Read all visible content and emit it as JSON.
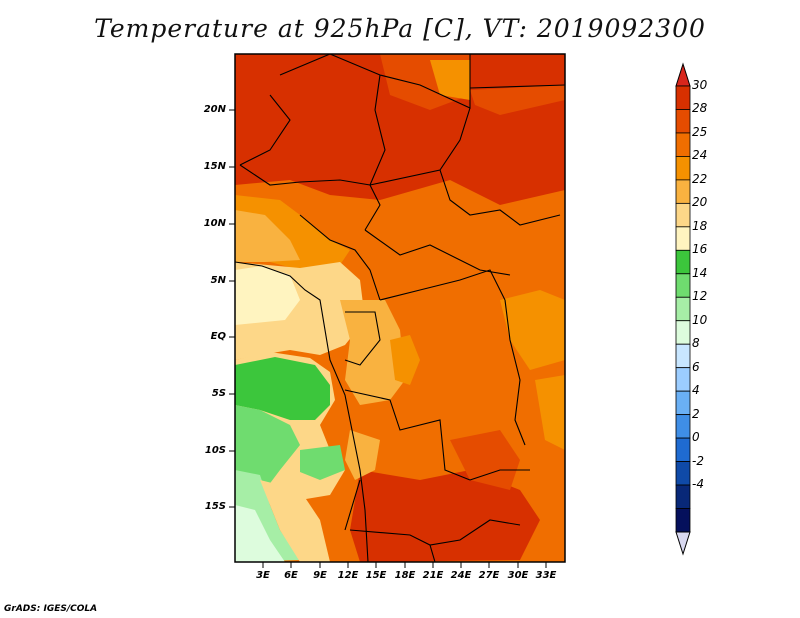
{
  "title": "Temperature at 925hPa [C], VT: 2019092300",
  "credit": "GrADS: IGES/COLA",
  "lat_labels": [
    "20N",
    "15N",
    "10N",
    "5N",
    "EQ",
    "5S",
    "10S",
    "15S"
  ],
  "lon_labels": [
    "3E",
    "6E",
    "9E",
    "12E",
    "15E",
    "18E",
    "21E",
    "24E",
    "27E",
    "30E",
    "33E"
  ],
  "colorbar": {
    "labels": [
      "30",
      "28",
      "25",
      "24",
      "22",
      "20",
      "18",
      "16",
      "14",
      "12",
      "10",
      "8",
      "6",
      "4",
      "2",
      "0",
      "-2",
      "-4"
    ],
    "colors": [
      "#d73000",
      "#e54c00",
      "#f06e00",
      "#f59100",
      "#f9b240",
      "#fdd788",
      "#fff4c0",
      "#3cc63c",
      "#6fdc6f",
      "#a6eea6",
      "#ddfcdd",
      "#c8e6ff",
      "#9ccdff",
      "#6ab0f5",
      "#3f8ee6",
      "#1f6bd1",
      "#0f4aa8",
      "#082878",
      "#05105c"
    ],
    "top_arrow_color": "#d8261c",
    "bottom_arrow_color": "#d8d8f0"
  }
}
